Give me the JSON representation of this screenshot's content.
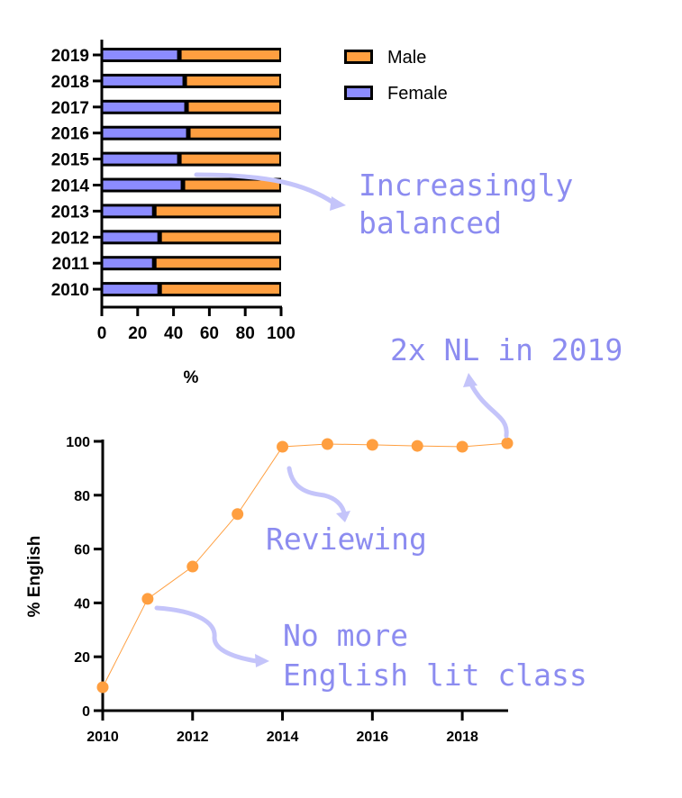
{
  "chart_data": [
    {
      "type": "bar",
      "stacked": true,
      "orientation": "horizontal",
      "categories": [
        "2010",
        "2011",
        "2012",
        "2013",
        "2014",
        "2015",
        "2016",
        "2017",
        "2018",
        "2019"
      ],
      "series": [
        {
          "name": "Female",
          "color": "#8c8cff",
          "values": [
            32,
            29,
            32,
            29,
            45,
            43,
            48,
            47,
            46,
            43
          ]
        },
        {
          "name": "Male",
          "color": "#ff9f40",
          "values": [
            68,
            71,
            68,
            71,
            55,
            57,
            52,
            53,
            54,
            57
          ]
        }
      ],
      "xlabel": "%",
      "xlim": [
        0,
        100
      ],
      "xticks": [
        "0",
        "20",
        "40",
        "60",
        "80",
        "100"
      ],
      "legend": "top-right"
    },
    {
      "type": "line",
      "x": [
        2010,
        2011,
        2012,
        2013,
        2014,
        2015,
        2016,
        2017,
        2018,
        2019
      ],
      "values": [
        8.7,
        41.5,
        53.5,
        73,
        98,
        99,
        98.7,
        98.3,
        98,
        99.3
      ],
      "color": "#ff9f40",
      "ylabel": "% English",
      "ylim": [
        0,
        100
      ],
      "yticks": [
        "0",
        "20",
        "40",
        "60",
        "80",
        "100"
      ],
      "xticks": [
        "2010",
        "2012",
        "2014",
        "2016",
        "2018"
      ]
    }
  ],
  "annotations": {
    "balanced": [
      "Increasingly",
      "balanced"
    ],
    "nl": "2x NL in 2019",
    "reviewing": "Reviewing",
    "nomore": [
      "No more",
      "English lit class"
    ]
  }
}
